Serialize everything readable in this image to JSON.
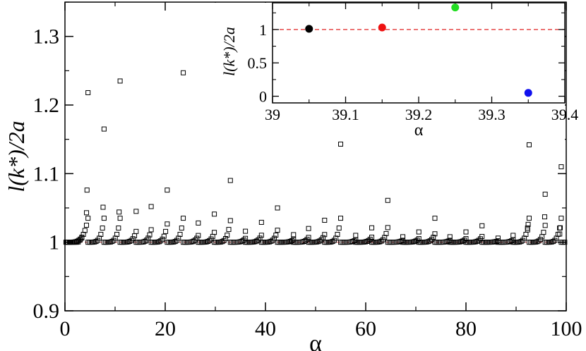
{
  "chart_data": [
    {
      "id": "main",
      "type": "scatter",
      "xlabel": "α",
      "ylabel": "l(k*)/2a",
      "xlim": [
        0,
        100
      ],
      "ylim": [
        0.9,
        1.35
      ],
      "xticks": [
        0,
        20,
        40,
        60,
        80,
        100
      ],
      "yticks": [
        0.9,
        1.0,
        1.1,
        1.2,
        1.3
      ],
      "ytick_labels": [
        "0.9",
        "1",
        "1.1",
        "1.2",
        "1.3"
      ],
      "reference_line": {
        "y": 1.0,
        "color": "#e05050",
        "style": "dashed"
      },
      "marker": "open-square",
      "series": [
        {
          "peaks": [
            {
              "x": 4.6,
              "y": 1.218
            },
            {
              "x": 7.8,
              "y": 1.165
            },
            {
              "x": 11.0,
              "y": 1.235
            },
            {
              "x": 14.2,
              "y": 1.045
            },
            {
              "x": 17.2,
              "y": 1.052
            },
            {
              "x": 20.4,
              "y": 1.076
            },
            {
              "x": 23.6,
              "y": 1.247
            },
            {
              "x": 26.6,
              "y": 1.028
            },
            {
              "x": 29.8,
              "y": 1.041
            },
            {
              "x": 33.0,
              "y": 1.09
            },
            {
              "x": 36.0,
              "y": 1.016
            },
            {
              "x": 39.2,
              "y": 1.029
            },
            {
              "x": 42.4,
              "y": 1.05
            },
            {
              "x": 45.6,
              "y": 1.011
            },
            {
              "x": 48.6,
              "y": 1.02
            },
            {
              "x": 51.8,
              "y": 1.032
            },
            {
              "x": 55.0,
              "y": 1.143
            },
            {
              "x": 58.0,
              "y": 1.01
            },
            {
              "x": 61.2,
              "y": 1.021
            },
            {
              "x": 64.4,
              "y": 1.061
            },
            {
              "x": 67.4,
              "y": 1.008
            },
            {
              "x": 70.6,
              "y": 1.015
            },
            {
              "x": 73.8,
              "y": 1.035
            },
            {
              "x": 76.8,
              "y": 1.008
            },
            {
              "x": 80.0,
              "y": 1.015
            },
            {
              "x": 83.2,
              "y": 1.024
            },
            {
              "x": 86.4,
              "y": 1.006
            },
            {
              "x": 89.4,
              "y": 1.01
            },
            {
              "x": 92.6,
              "y": 1.142
            },
            {
              "x": 95.8,
              "y": 1.07
            },
            {
              "x": 99.0,
              "y": 1.11
            }
          ],
          "secondary_points": [
            {
              "x": 4.4,
              "y": 1.076
            },
            {
              "x": 4.3,
              "y": 1.043
            },
            {
              "x": 7.6,
              "y": 1.051
            },
            {
              "x": 10.8,
              "y": 1.044
            },
            {
              "x": 92.4,
              "y": 1.026
            },
            {
              "x": 92.3,
              "y": 1.018
            },
            {
              "x": 95.7,
              "y": 1.037
            },
            {
              "x": 98.8,
              "y": 1.021
            },
            {
              "x": 98.7,
              "y": 1.012
            }
          ]
        }
      ]
    },
    {
      "id": "inset",
      "type": "scatter",
      "xlabel": "α",
      "ylabel": "l(k*)/2a",
      "xlim": [
        39.0,
        39.4
      ],
      "ylim": [
        -0.1,
        1.4
      ],
      "xticks": [
        39.0,
        39.1,
        39.2,
        39.3,
        39.4
      ],
      "xtick_labels": [
        "39",
        "39.1",
        "39.2",
        "39.3",
        "39.4"
      ],
      "yticks": [
        0,
        0.5,
        1
      ],
      "ytick_labels": [
        "0",
        "0.5",
        "1"
      ],
      "reference_line": {
        "y": 1.0,
        "color": "#e02020",
        "style": "dashed"
      },
      "points": [
        {
          "x": 39.05,
          "y": 1.01,
          "color": "#000000"
        },
        {
          "x": 39.15,
          "y": 1.03,
          "color": "#ee1111"
        },
        {
          "x": 39.25,
          "y": 1.33,
          "color": "#22dd22"
        },
        {
          "x": 39.35,
          "y": 0.05,
          "color": "#1111ee"
        }
      ]
    }
  ]
}
